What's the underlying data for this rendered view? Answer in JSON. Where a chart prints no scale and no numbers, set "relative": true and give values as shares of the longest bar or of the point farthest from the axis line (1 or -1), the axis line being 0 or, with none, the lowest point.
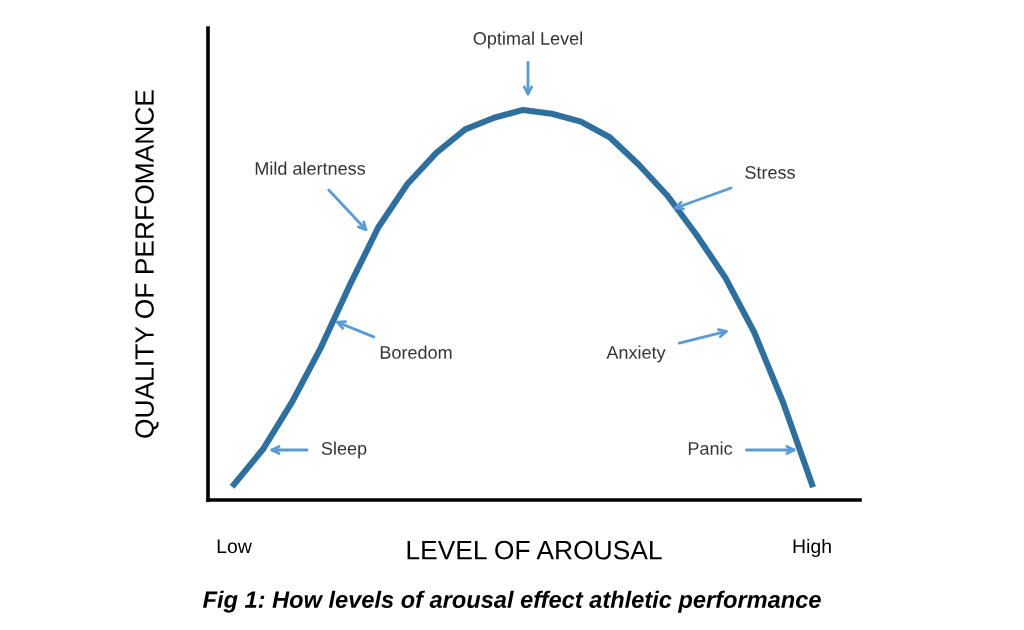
{
  "chart_data": {
    "type": "line",
    "relative": true,
    "xlabel": "LEVEL OF AROUSAL",
    "ylabel": "QUALITY OF PERFOMANCE",
    "categories": [
      "Low",
      null,
      null,
      null,
      null,
      null,
      null,
      null,
      null,
      null,
      null,
      null,
      null,
      null,
      null,
      null,
      null,
      null,
      null,
      null,
      "High"
    ],
    "tick_labels": "x",
    "grid": false,
    "legend": false,
    "marker": "none",
    "line_style": "solid",
    "series": [
      {
        "color": "#2e6f9e",
        "values": [
          0.04,
          0.13,
          0.25,
          0.39,
          0.55,
          0.7,
          0.81,
          0.89,
          0.95,
          0.98,
          1.0,
          0.99,
          0.97,
          0.93,
          0.86,
          0.78,
          0.68,
          0.57,
          0.43,
          0.25,
          0.04
        ]
      }
    ],
    "annotations": [
      "Sleep",
      "Boredom",
      "Mild alertness",
      "Optimal Level",
      "Stress",
      "Anxiety",
      "Panic",
      "Fig 1: How levels of arousal effect athletic performance"
    ]
  }
}
